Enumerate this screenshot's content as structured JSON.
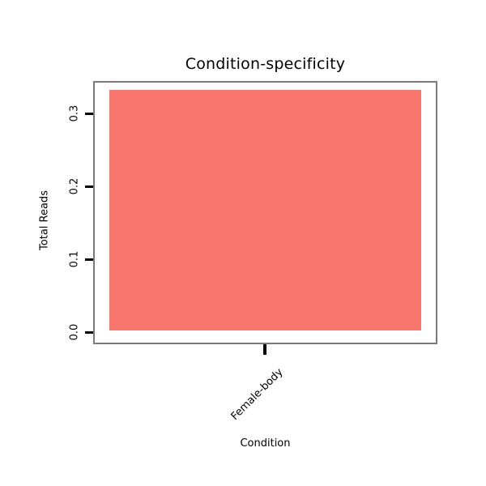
{
  "chart_data": {
    "type": "bar",
    "title": "Condition-specificity",
    "xlabel": "Condition",
    "ylabel": "Total Reads",
    "categories": [
      "Female-body"
    ],
    "values": [
      0.33
    ],
    "ylim": [
      0,
      0.35
    ],
    "yticks": [
      0.0,
      0.1,
      0.2,
      0.3
    ],
    "ytick_labels": [
      "0.0",
      "0.1",
      "0.2",
      "0.3"
    ],
    "bar_color": "#F8766D",
    "box_border_color": "#7a7a7a",
    "grid": false,
    "legend": false
  }
}
